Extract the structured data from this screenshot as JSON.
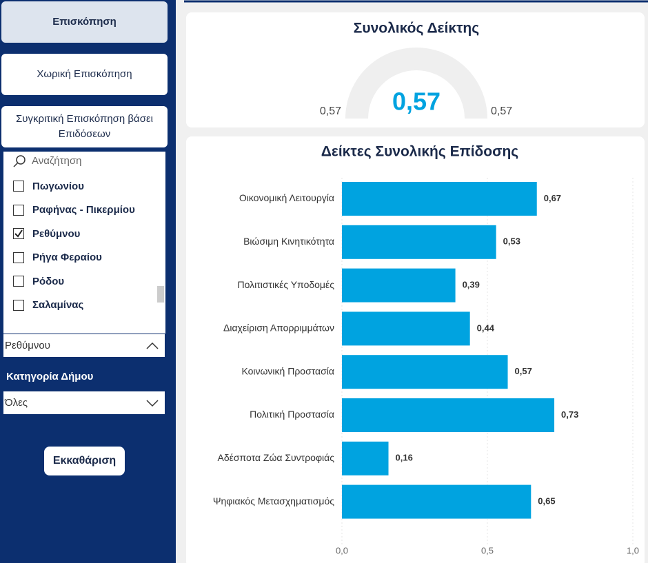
{
  "sidebar": {
    "nav": [
      {
        "label": "Επισκόπηση",
        "active": true
      },
      {
        "label": "Χωρική Επισκόπηση",
        "active": false
      },
      {
        "label": "Συγκριτική Επισκόπηση βάσει Επιδόσεων",
        "active": false
      }
    ],
    "search_placeholder": "Αναζήτηση",
    "items": [
      {
        "label": "Πωγωνίου",
        "checked": false
      },
      {
        "label": "Ραφήνας - Πικερμίου",
        "checked": false
      },
      {
        "label": "Ρεθύμνου",
        "checked": true
      },
      {
        "label": "Ρήγα Φεραίου",
        "checked": false
      },
      {
        "label": "Ρόδου",
        "checked": false
      },
      {
        "label": "Σαλαμίνας",
        "checked": false
      }
    ],
    "selected": "Ρεθύμνου",
    "category_label": "Κατηγορία Δήμου",
    "category_value": "Όλες",
    "clear_button": "Εκκαθάριση"
  },
  "chart_data": [
    {
      "type": "gauge",
      "title": "Συνολικός Δείκτης",
      "value": 0.57,
      "value_label": "0,57",
      "min": {
        "value": 0.57,
        "label": "0,57"
      },
      "max": {
        "value": 0.57,
        "label": "0,57"
      },
      "color": "#00a3e0"
    },
    {
      "type": "bar",
      "title": "Δείκτες Συνολικής Επίδοσης",
      "categories": [
        "Οικονομική Λειτουργία",
        "Βιώσιμη Κινητικότητα",
        "Πολιτιστικές Υποδομές",
        "Διαχείριση Απορριμμάτων",
        "Κοινωνική Προστασία",
        "Πολιτική Προστασία",
        "Αδέσποτα Ζώα Συντροφιάς",
        "Ψηφιακός Μετασχηματισμός"
      ],
      "values": [
        0.67,
        0.53,
        0.39,
        0.44,
        0.57,
        0.73,
        0.16,
        0.65
      ],
      "value_labels": [
        "0,67",
        "0,53",
        "0,39",
        "0,44",
        "0,57",
        "0,73",
        "0,16",
        "0,65"
      ],
      "color": "#00a3e0",
      "xlim": [
        0,
        1
      ],
      "xticks": [
        {
          "value": 0,
          "label": "0,0"
        },
        {
          "value": 0.5,
          "label": "0,5"
        },
        {
          "value": 1,
          "label": "1,0"
        }
      ],
      "grid": true
    }
  ]
}
